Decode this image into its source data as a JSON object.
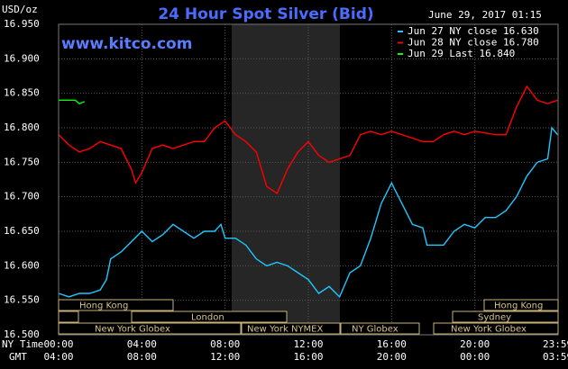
{
  "chart_data": {
    "type": "line",
    "title": "24 Hour Spot Silver (Bid)",
    "timestamp": "June 29, 2017 01:15",
    "site": "www.kitco.com",
    "y_unit": "USD/oz",
    "x_row_label": "NY Time",
    "x2_row_label": "GMT",
    "xlim": [
      0,
      24
    ],
    "xticks": [
      {
        "value": 0,
        "label": "00:00"
      },
      {
        "value": 4,
        "label": "04:00"
      },
      {
        "value": 8,
        "label": "08:00"
      },
      {
        "value": 12,
        "label": "12:00"
      },
      {
        "value": 16,
        "label": "16:00"
      },
      {
        "value": 20,
        "label": "20:00"
      },
      {
        "value": 23.98,
        "label": "23:59"
      }
    ],
    "x2ticks": [
      "04:00",
      "08:00",
      "12:00",
      "16:00",
      "20:00",
      "00:00",
      "03:59"
    ],
    "ylim": [
      16.5,
      16.95
    ],
    "yticks": [
      {
        "value": 16.5,
        "label": "16.500"
      },
      {
        "value": 16.55,
        "label": "16.550"
      },
      {
        "value": 16.6,
        "label": "16.600"
      },
      {
        "value": 16.65,
        "label": "16.650"
      },
      {
        "value": 16.7,
        "label": "16.700"
      },
      {
        "value": 16.75,
        "label": "16.750"
      },
      {
        "value": 16.8,
        "label": "16.800"
      },
      {
        "value": 16.85,
        "label": "16.850"
      },
      {
        "value": 16.9,
        "label": "16.900"
      },
      {
        "value": 16.95,
        "label": "16.950"
      }
    ],
    "grid": true,
    "sessions": [
      "Hong Kong",
      "London",
      "New York Globex",
      "New York NYMEX",
      "NY Globex",
      "Hong Kong",
      "Sydney",
      "New York Globex"
    ],
    "series": [
      {
        "name": "Jun 27 NY close 16.630",
        "color": "#1ec8ff",
        "x": [
          0,
          0.5,
          1,
          1.5,
          2,
          2.3,
          2.5,
          3,
          3.5,
          4,
          4.5,
          5,
          5.5,
          6,
          6.5,
          7,
          7.5,
          7.8,
          8,
          8.5,
          9,
          9.5,
          10,
          10.5,
          11,
          11.5,
          12,
          12.5,
          13,
          13.5,
          14,
          14.5,
          15,
          15.5,
          16,
          16.5,
          17,
          17.5,
          17.7,
          18,
          18.5,
          19,
          19.5,
          20,
          20.5,
          21,
          21.5,
          22,
          22.5,
          23,
          23.5,
          23.7,
          23.98
        ],
        "values": [
          16.56,
          16.555,
          16.56,
          16.56,
          16.565,
          16.58,
          16.61,
          16.62,
          16.635,
          16.65,
          16.635,
          16.645,
          16.66,
          16.65,
          16.64,
          16.65,
          16.65,
          16.66,
          16.64,
          16.64,
          16.63,
          16.61,
          16.6,
          16.605,
          16.6,
          16.59,
          16.58,
          16.56,
          16.57,
          16.555,
          16.59,
          16.6,
          16.64,
          16.69,
          16.72,
          16.69,
          16.66,
          16.655,
          16.63,
          16.63,
          16.63,
          16.65,
          16.66,
          16.655,
          16.67,
          16.67,
          16.68,
          16.7,
          16.73,
          16.75,
          16.755,
          16.8,
          16.79
        ]
      },
      {
        "name": "Jun 28 NY close 16.780",
        "color": "#ff0000",
        "x": [
          0,
          0.5,
          1,
          1.5,
          2,
          2.5,
          3,
          3.5,
          3.7,
          4,
          4.5,
          5,
          5.5,
          6,
          6.5,
          7,
          7.5,
          8,
          8.5,
          9,
          9.5,
          10,
          10.5,
          11,
          11.5,
          12,
          12.5,
          13,
          13.5,
          14,
          14.5,
          15,
          15.5,
          16,
          16.5,
          17,
          17.5,
          18,
          18.5,
          19,
          19.5,
          20,
          21,
          21.5,
          22,
          22.5,
          23,
          23.5,
          23.98
        ],
        "values": [
          16.79,
          16.775,
          16.765,
          16.77,
          16.78,
          16.775,
          16.77,
          16.74,
          16.72,
          16.735,
          16.77,
          16.775,
          16.77,
          16.775,
          16.78,
          16.78,
          16.8,
          16.81,
          16.79,
          16.78,
          16.765,
          16.715,
          16.705,
          16.74,
          16.765,
          16.78,
          16.76,
          16.75,
          16.755,
          16.76,
          16.79,
          16.795,
          16.79,
          16.795,
          16.79,
          16.785,
          16.78,
          16.78,
          16.79,
          16.795,
          16.79,
          16.795,
          16.79,
          16.79,
          16.83,
          16.86,
          16.84,
          16.835,
          16.84
        ]
      },
      {
        "name": "Jun 29 Last 16.840",
        "color": "#00ff00",
        "x": [
          0,
          0.5,
          0.8,
          1,
          1.25
        ],
        "values": [
          16.84,
          16.84,
          16.84,
          16.835,
          16.838
        ]
      }
    ]
  }
}
